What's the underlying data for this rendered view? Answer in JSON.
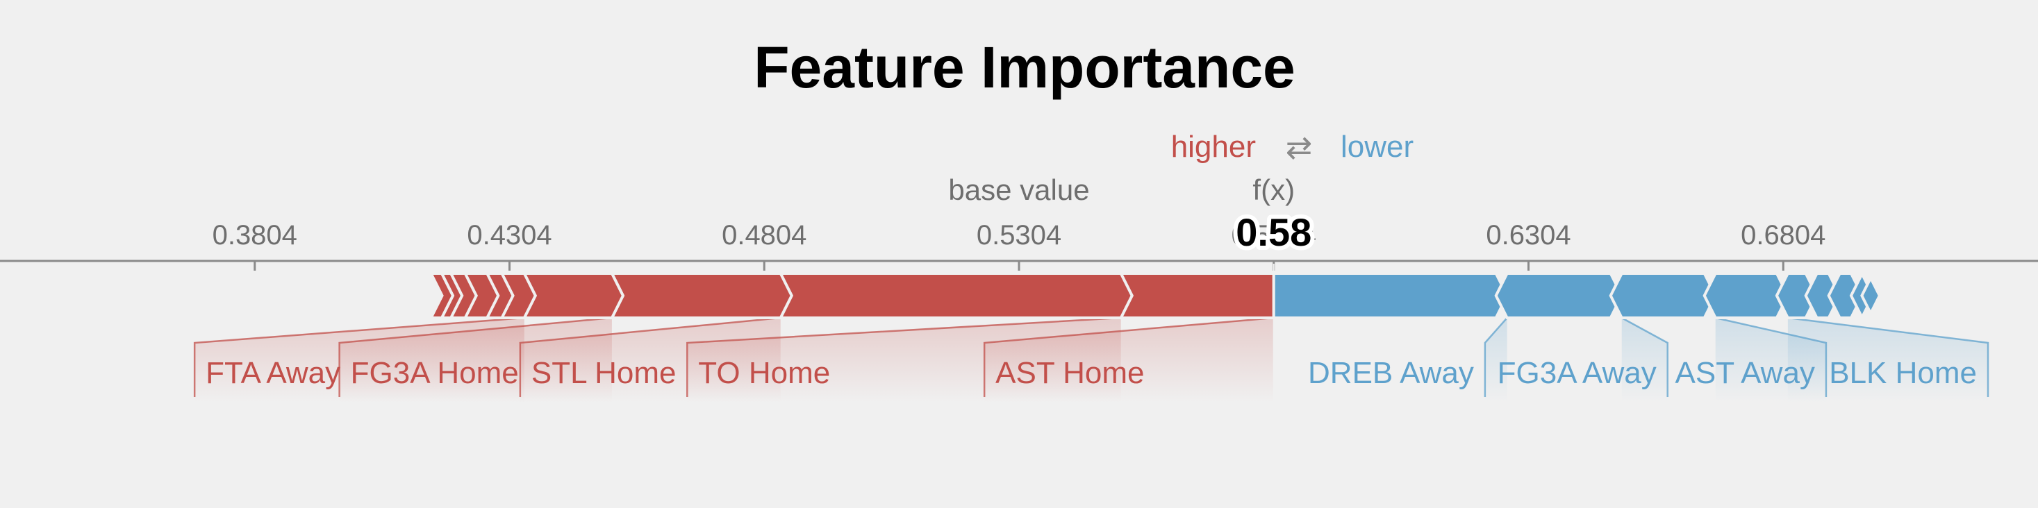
{
  "chart_data": {
    "type": "bar",
    "title": "Feature Importance",
    "legend": {
      "higher": "higher",
      "lower": "lower",
      "arrow": "⇄"
    },
    "base_value_label": "base value",
    "fx_label": "f(x)",
    "base_value": 0.5304,
    "fx_value": 0.5804,
    "fx_display": "0.58",
    "axis": {
      "min": 0.3304,
      "max": 0.7304,
      "ticks": [
        0.3804,
        0.4304,
        0.4804,
        0.5304,
        0.5804,
        0.6304,
        0.6804
      ],
      "tick_labels": [
        "0.3804",
        "0.4304",
        "0.4804",
        "0.5304",
        "0.5804",
        "0.6304",
        "0.6804"
      ]
    },
    "positive": [
      {
        "name": "AST Home",
        "start": 0.5504,
        "end": 0.5804,
        "label_x": 0.5404
      },
      {
        "name": "TO Home",
        "start": 0.4836,
        "end": 0.5504,
        "label_x": 0.4804
      },
      {
        "name": "STL Home",
        "start": 0.4505,
        "end": 0.4836,
        "label_x": 0.4489
      },
      {
        "name": "FG3A Home",
        "start": 0.4333,
        "end": 0.4505,
        "label_x": 0.4157
      },
      {
        "name": "FTA Away",
        "start": 0.4289,
        "end": 0.4333,
        "label_x": 0.384
      },
      {
        "name": "",
        "start": 0.426,
        "end": 0.4289
      },
      {
        "name": "",
        "start": 0.4217,
        "end": 0.426
      },
      {
        "name": "",
        "start": 0.4189,
        "end": 0.4217
      },
      {
        "name": "",
        "start": 0.4171,
        "end": 0.4189
      },
      {
        "name": "",
        "start": 0.415,
        "end": 0.4171
      }
    ],
    "negative": [
      {
        "name": "DREB Away",
        "start": 0.5804,
        "end": 0.6262,
        "label_x": 0.6034
      },
      {
        "name": "FG3A Away",
        "start": 0.6262,
        "end": 0.6487,
        "label_x": 0.6399
      },
      {
        "name": "AST Away",
        "start": 0.6487,
        "end": 0.6671,
        "label_x": 0.6729
      },
      {
        "name": "BLK Home",
        "start": 0.6671,
        "end": 0.6813,
        "label_x": 0.7039
      },
      {
        "name": "",
        "start": 0.6813,
        "end": 0.687
      },
      {
        "name": "",
        "start": 0.687,
        "end": 0.6915
      },
      {
        "name": "",
        "start": 0.6915,
        "end": 0.6959
      },
      {
        "name": "",
        "start": 0.6959,
        "end": 0.698
      },
      {
        "name": "",
        "start": 0.698,
        "end": 0.6993
      }
    ],
    "colors": {
      "positive": "#c24f4a",
      "negative": "#5ea1cc",
      "positive_text": "#c24f4a",
      "negative_text": "#5ea1cc"
    }
  }
}
